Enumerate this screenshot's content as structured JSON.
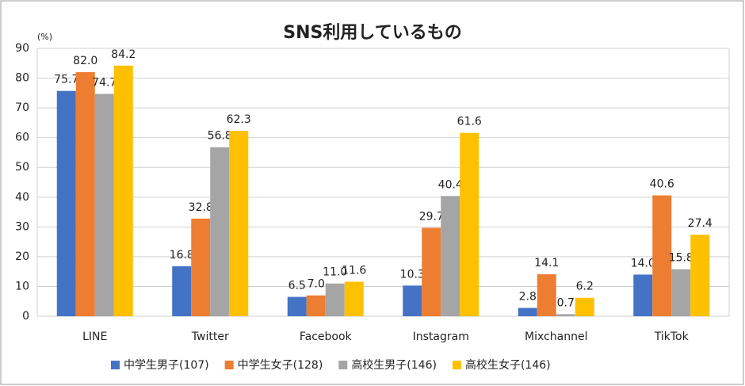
{
  "chart_data": {
    "type": "bar",
    "title": "SNS利用しているもの",
    "y_label": "(%)",
    "categories": [
      "LINE",
      "Twitter",
      "Facebook",
      "Instagram",
      "Mixchannel",
      "TikTok"
    ],
    "series": [
      {
        "name": "中学生男子(107)",
        "color": "#4472c4",
        "values": [
          75.7,
          16.8,
          6.5,
          10.3,
          2.8,
          14.0
        ],
        "value_labels": [
          "75.7",
          "16.8",
          "6.5",
          "10.3",
          "2.8",
          "14.0"
        ]
      },
      {
        "name": "中学生女子(128)",
        "color": "#ed7d31",
        "values": [
          82.0,
          32.8,
          7.0,
          29.7,
          14.1,
          40.6
        ],
        "value_labels": [
          "82.0",
          "32.8",
          "7.0",
          "29.7",
          "14.1",
          "40.6"
        ]
      },
      {
        "name": "高校生男子(146)",
        "color": "#a5a5a5",
        "values": [
          74.7,
          56.8,
          11.0,
          40.4,
          0.7,
          15.8
        ],
        "value_labels": [
          "74.7",
          "56.8",
          "11.0",
          "40.4",
          "0.7",
          "15.8"
        ]
      },
      {
        "name": "高校生女子(146)",
        "color": "#ffc000",
        "values": [
          84.2,
          62.3,
          11.6,
          61.6,
          6.2,
          27.4
        ],
        "value_labels": [
          "84.2",
          "62.3",
          "11.6",
          "61.6",
          "6.2",
          "27.4"
        ]
      }
    ],
    "ylim": [
      0,
      90
    ],
    "yticks": [
      0,
      10,
      20,
      30,
      40,
      50,
      60,
      70,
      80,
      90
    ],
    "grid": true
  }
}
